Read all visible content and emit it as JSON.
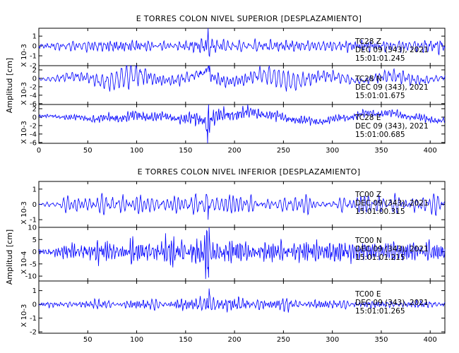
{
  "chart_data": [
    {
      "type": "line",
      "title": "E TORRES COLON NIVEL SUPERIOR [DESPLAZAMIENTO]",
      "ylabel": "Amplitud [cm]",
      "xlim": [
        0,
        415
      ],
      "xticks": [
        0,
        50,
        100,
        150,
        200,
        250,
        300,
        350,
        400
      ],
      "x_tick_labels": [
        "0",
        "50",
        "100",
        "150",
        "200",
        "250",
        "300",
        "350",
        "400"
      ],
      "line_color": "#0000ff",
      "panels": [
        {
          "scale_label": "X 10-3",
          "ylim": [
            -2.0,
            1.8
          ],
          "yticks": [
            -2,
            -1,
            0,
            1
          ],
          "y_tick_labels": [
            "-2",
            "-1",
            "0",
            "1"
          ],
          "info": [
            "TC28 Z",
            "DEC 09 (343), 2021",
            "15:01:01.245"
          ],
          "series": {
            "amp": 0.55,
            "fmin": 0.15,
            "fmax": 0.6,
            "noise": 0.15,
            "seed": 11,
            "spike": 1.2,
            "envelope": [
              [
                0,
                0.3
              ],
              [
                40,
                0.8
              ],
              [
                100,
                1.0
              ],
              [
                140,
                0.6
              ],
              [
                170,
                1.2
              ],
              [
                200,
                0.7
              ],
              [
                260,
                0.8
              ],
              [
                320,
                0.9
              ],
              [
                380,
                0.9
              ],
              [
                415,
                1.0
              ]
            ]
          }
        },
        {
          "scale_label": "X 10-3",
          "ylim": [
            -6.2,
            3.0
          ],
          "yticks": [
            -6,
            -4,
            -2,
            0,
            2
          ],
          "y_tick_labels": [
            "-6",
            "-4",
            "-2",
            "0",
            "2"
          ],
          "info": [
            "TC28 N",
            "DEC 09 (343), 2021",
            "15:01:01.675"
          ],
          "series": {
            "amp": 2.2,
            "fmin": 1.6,
            "fmax": 2.4,
            "noise": 0.2,
            "seed": 23,
            "spike": 2.0,
            "envelope": [
              [
                0,
                0.2
              ],
              [
                50,
                0.6
              ],
              [
                95,
                1.2
              ],
              [
                130,
                0.5
              ],
              [
                172,
                1.3
              ],
              [
                200,
                0.7
              ],
              [
                255,
                0.9
              ],
              [
                300,
                0.6
              ],
              [
                360,
                0.7
              ],
              [
                415,
                0.5
              ]
            ]
          }
        },
        {
          "scale_label": "X 10-3",
          "ylim": [
            -6.2,
            3.0
          ],
          "yticks": [
            -6,
            -4,
            -2,
            0,
            2
          ],
          "y_tick_labels": [
            "-6",
            "-4",
            "-2",
            "0",
            "2"
          ],
          "info": [
            "TC28 E",
            "DEC 09 (343), 2021",
            "15:01:00.685"
          ],
          "series": {
            "amp": 1.8,
            "fmin": 1.4,
            "fmax": 2.2,
            "noise": 0.2,
            "seed": 37,
            "spike": 2.2,
            "envelope": [
              [
                0,
                0.2
              ],
              [
                60,
                0.6
              ],
              [
                100,
                0.9
              ],
              [
                140,
                0.6
              ],
              [
                172,
                1.3
              ],
              [
                215,
                1.0
              ],
              [
                260,
                0.7
              ],
              [
                320,
                0.6
              ],
              [
                380,
                0.6
              ],
              [
                415,
                0.5
              ]
            ]
          }
        }
      ]
    },
    {
      "type": "line",
      "title": "E TORRES COLON NIVEL INFERIOR [DESPLAZAMIENTO]",
      "ylabel": "Amplitud [cm]",
      "xlim": [
        0,
        415
      ],
      "xticks": [
        50,
        100,
        150,
        200,
        250,
        300,
        350,
        400
      ],
      "x_tick_labels": [
        "50",
        "100",
        "150",
        "200",
        "250",
        "300",
        "350",
        "400"
      ],
      "line_color": "#0000ff",
      "panels": [
        {
          "scale_label": "X 10-3",
          "ylim": [
            -1.5,
            1.5
          ],
          "yticks": [
            -1,
            0,
            1
          ],
          "y_tick_labels": [
            "-1",
            "0",
            "1"
          ],
          "info": [
            "TC00 Z",
            "DEC 09 (343), 2021",
            "15:01:00.315"
          ],
          "series": {
            "amp": 0.5,
            "fmin": 0.1,
            "fmax": 0.4,
            "noise": 0.2,
            "seed": 51,
            "spike": 0.9,
            "envelope": [
              [
                0,
                0.2
              ],
              [
                40,
                0.8
              ],
              [
                70,
                1.1
              ],
              [
                130,
                0.8
              ],
              [
                172,
                1.0
              ],
              [
                230,
                0.9
              ],
              [
                260,
                0.7
              ],
              [
                300,
                0.8
              ],
              [
                360,
                0.9
              ],
              [
                415,
                0.9
              ]
            ]
          }
        },
        {
          "scale_label": "X 10-4",
          "ylim": [
            -12,
            10
          ],
          "yticks": [
            -10,
            -5,
            0,
            5,
            10
          ],
          "y_tick_labels": [
            "-10",
            "-5",
            "0",
            "5",
            "10"
          ],
          "info": [
            "TC00 N",
            "DEC 09 (343), 2021",
            "15:01:01.215"
          ],
          "series": {
            "amp": 3.8,
            "fmin": 0.2,
            "fmax": 0.9,
            "noise": 0.3,
            "seed": 67,
            "spike": 1.3,
            "envelope": [
              [
                0,
                0.3
              ],
              [
                50,
                0.8
              ],
              [
                120,
                1.0
              ],
              [
                172,
                1.2
              ],
              [
                220,
                0.8
              ],
              [
                300,
                0.9
              ],
              [
                360,
                0.9
              ],
              [
                415,
                0.8
              ]
            ]
          }
        },
        {
          "scale_label": "X 10-3",
          "ylim": [
            -2.1,
            1.7
          ],
          "yticks": [
            -2,
            -1,
            0,
            1
          ],
          "y_tick_labels": [
            "-2",
            "-1",
            "0",
            "1"
          ],
          "info": [
            "TC00 E",
            "DEC 09 (343), 2021",
            "15:01:01.265"
          ],
          "series": {
            "amp": 0.4,
            "fmin": 0.15,
            "fmax": 0.6,
            "noise": 0.2,
            "seed": 83,
            "spike": 2.4,
            "envelope": [
              [
                0,
                0.3
              ],
              [
                60,
                0.6
              ],
              [
                120,
                0.7
              ],
              [
                172,
                1.0
              ],
              [
                220,
                0.9
              ],
              [
                300,
                0.6
              ],
              [
                360,
                0.5
              ],
              [
                415,
                0.5
              ]
            ]
          }
        }
      ]
    }
  ]
}
